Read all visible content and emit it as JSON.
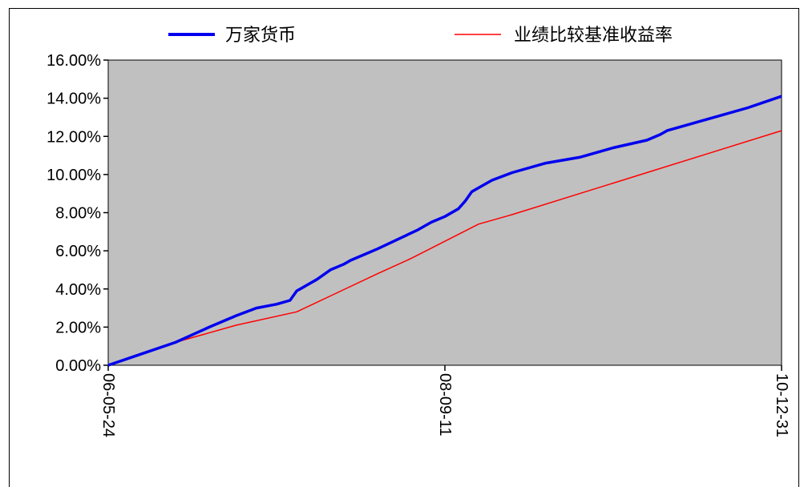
{
  "chart_data": {
    "type": "line",
    "title": "",
    "xlabel": "",
    "ylabel": "",
    "ylim": [
      0,
      16
    ],
    "y_ticks": [
      "0.00%",
      "2.00%",
      "4.00%",
      "6.00%",
      "8.00%",
      "10.00%",
      "12.00%",
      "14.00%",
      "16.00%"
    ],
    "x_ticks": [
      "06-05-24",
      "08-09-11",
      "10-12-31"
    ],
    "x_tick_positions": [
      0,
      0.5,
      1.0
    ],
    "legend_position": "top",
    "grid": false,
    "plot_background": "#c0c0c0",
    "series": [
      {
        "name": "万家货币",
        "color": "#0000ee",
        "x": [
          0,
          0.05,
          0.1,
          0.15,
          0.19,
          0.22,
          0.25,
          0.27,
          0.28,
          0.285,
          0.3,
          0.31,
          0.33,
          0.35,
          0.36,
          0.38,
          0.4,
          0.43,
          0.46,
          0.48,
          0.5,
          0.52,
          0.53,
          0.54,
          0.55,
          0.57,
          0.6,
          0.65,
          0.7,
          0.72,
          0.75,
          0.8,
          0.82,
          0.83,
          0.85,
          0.9,
          0.95,
          1.0
        ],
        "values": [
          0,
          0.6,
          1.2,
          2.0,
          2.6,
          3.0,
          3.2,
          3.4,
          3.9,
          4.0,
          4.3,
          4.5,
          5.0,
          5.3,
          5.5,
          5.8,
          6.1,
          6.6,
          7.1,
          7.5,
          7.8,
          8.2,
          8.6,
          9.1,
          9.3,
          9.7,
          10.1,
          10.6,
          10.9,
          11.1,
          11.4,
          11.8,
          12.1,
          12.3,
          12.5,
          13.0,
          13.5,
          14.1
        ]
      },
      {
        "name": "业绩比较基准收益率",
        "color": "#ff0000",
        "x": [
          0,
          0.1,
          0.19,
          0.28,
          0.34,
          0.4,
          0.45,
          0.5,
          0.55,
          0.6,
          0.7,
          0.8,
          0.9,
          1.0
        ],
        "values": [
          0,
          1.2,
          2.1,
          2.8,
          3.8,
          4.8,
          5.6,
          6.5,
          7.4,
          7.9,
          9.0,
          10.1,
          11.2,
          12.3
        ]
      }
    ]
  }
}
